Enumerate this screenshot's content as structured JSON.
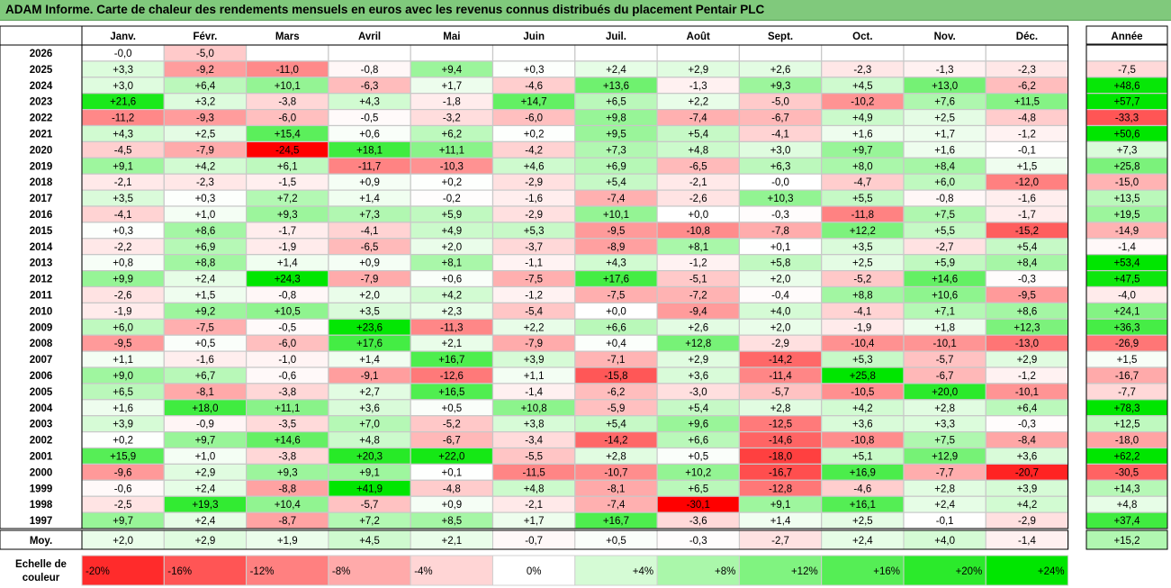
{
  "title": "ADAM Informe. Carte de chaleur des rendements mensuels en euros avec les revenus connus distribués du placement Pentair PLC",
  "chart_data": {
    "type": "heatmap",
    "months": [
      "Janv.",
      "Févr.",
      "Mars",
      "Avril",
      "Mai",
      "Juin",
      "Juil.",
      "Août",
      "Sept.",
      "Oct.",
      "Nov.",
      "Déc."
    ],
    "year_column_label": "Année",
    "rows": [
      {
        "year": "2026",
        "values": [
          "-0,0",
          "-5,0",
          null,
          null,
          null,
          null,
          null,
          null,
          null,
          null,
          null,
          null
        ],
        "annual": null
      },
      {
        "year": "2025",
        "values": [
          "+3,3",
          "-9,2",
          "-11,0",
          "-0,8",
          "+9,4",
          "+0,3",
          "+2,4",
          "+2,9",
          "+2,6",
          "-2,3",
          "-1,3",
          "-2,3"
        ],
        "annual": "-7,5"
      },
      {
        "year": "2024",
        "values": [
          "+3,0",
          "+6,4",
          "+10,1",
          "-6,3",
          "+1,7",
          "-4,6",
          "+13,6",
          "-1,3",
          "+9,3",
          "+4,5",
          "+13,0",
          "-6,2"
        ],
        "annual": "+48,6"
      },
      {
        "year": "2023",
        "values": [
          "+21,6",
          "+3,2",
          "-3,8",
          "+4,3",
          "-1,8",
          "+14,7",
          "+6,5",
          "+2,2",
          "-5,0",
          "-10,2",
          "+7,6",
          "+11,5"
        ],
        "annual": "+57,7"
      },
      {
        "year": "2022",
        "values": [
          "-11,2",
          "-9,3",
          "-6,0",
          "-0,5",
          "-3,2",
          "-6,0",
          "+9,8",
          "-7,4",
          "-6,7",
          "+4,9",
          "+2,5",
          "-4,8"
        ],
        "annual": "-33,3"
      },
      {
        "year": "2021",
        "values": [
          "+4,3",
          "+2,5",
          "+15,4",
          "+0,6",
          "+6,2",
          "+0,2",
          "+9,5",
          "+5,4",
          "-4,1",
          "+1,6",
          "+1,7",
          "-1,2"
        ],
        "annual": "+50,6"
      },
      {
        "year": "2020",
        "values": [
          "-4,5",
          "-7,9",
          "-24,5",
          "+18,1",
          "+11,1",
          "-4,2",
          "+7,3",
          "+4,8",
          "+3,0",
          "+9,7",
          "+1,6",
          "-0,1"
        ],
        "annual": "+7,3"
      },
      {
        "year": "2019",
        "values": [
          "+9,1",
          "+4,2",
          "+6,1",
          "-11,7",
          "-10,3",
          "+4,6",
          "+6,9",
          "-6,5",
          "+6,3",
          "+8,0",
          "+8,4",
          "+1,5"
        ],
        "annual": "+25,8"
      },
      {
        "year": "2018",
        "values": [
          "-2,1",
          "-2,3",
          "-1,5",
          "+0,9",
          "+0,2",
          "-2,9",
          "+5,4",
          "-2,1",
          "-0,0",
          "-4,7",
          "+6,0",
          "-12,0"
        ],
        "annual": "-15,0"
      },
      {
        "year": "2017",
        "values": [
          "+3,5",
          "+0,3",
          "+7,2",
          "+1,4",
          "-0,2",
          "-1,6",
          "-7,4",
          "-2,6",
          "+10,3",
          "+5,5",
          "-0,8",
          "-1,6"
        ],
        "annual": "+13,5"
      },
      {
        "year": "2016",
        "values": [
          "-4,1",
          "+1,0",
          "+9,3",
          "+7,3",
          "+5,9",
          "-2,9",
          "+10,1",
          "+0,0",
          "-0,3",
          "-11,8",
          "+7,5",
          "-1,7"
        ],
        "annual": "+19,5"
      },
      {
        "year": "2015",
        "values": [
          "+0,3",
          "+8,6",
          "-1,7",
          "-4,1",
          "+4,9",
          "+5,3",
          "-9,5",
          "-10,8",
          "-7,8",
          "+12,2",
          "+5,5",
          "-15,2"
        ],
        "annual": "-14,9"
      },
      {
        "year": "2014",
        "values": [
          "-2,2",
          "+6,9",
          "-1,9",
          "-6,5",
          "+2,0",
          "-3,7",
          "-8,9",
          "+8,1",
          "+0,1",
          "+3,5",
          "-2,7",
          "+5,4"
        ],
        "annual": "-1,4"
      },
      {
        "year": "2013",
        "values": [
          "+0,8",
          "+8,8",
          "+1,4",
          "+0,9",
          "+8,1",
          "-1,1",
          "+4,3",
          "-1,2",
          "+5,8",
          "+2,5",
          "+5,9",
          "+8,4"
        ],
        "annual": "+53,4"
      },
      {
        "year": "2012",
        "values": [
          "+9,9",
          "+2,4",
          "+24,3",
          "-7,9",
          "+0,6",
          "-7,5",
          "+17,6",
          "-5,1",
          "+2,0",
          "-5,2",
          "+14,6",
          "-0,3"
        ],
        "annual": "+47,5"
      },
      {
        "year": "2011",
        "values": [
          "-2,6",
          "+1,5",
          "-0,8",
          "+2,0",
          "+4,2",
          "-1,2",
          "-7,5",
          "-7,2",
          "-0,4",
          "+8,8",
          "+10,6",
          "-9,5"
        ],
        "annual": "-4,0"
      },
      {
        "year": "2010",
        "values": [
          "-1,9",
          "+9,2",
          "+10,5",
          "+3,5",
          "+2,3",
          "-5,4",
          "+0,0",
          "-9,4",
          "+4,0",
          "-4,1",
          "+7,1",
          "+8,6"
        ],
        "annual": "+24,1"
      },
      {
        "year": "2009",
        "values": [
          "+6,0",
          "-7,5",
          "-0,5",
          "+23,6",
          "-11,3",
          "+2,2",
          "+6,6",
          "+2,6",
          "+2,0",
          "-1,9",
          "+1,8",
          "+12,3"
        ],
        "annual": "+36,3"
      },
      {
        "year": "2008",
        "values": [
          "-9,5",
          "+0,5",
          "-6,0",
          "+17,6",
          "+2,1",
          "-7,9",
          "+0,4",
          "+12,8",
          "-2,9",
          "-10,4",
          "-10,1",
          "-13,0"
        ],
        "annual": "-26,9"
      },
      {
        "year": "2007",
        "values": [
          "+1,1",
          "-1,6",
          "-1,0",
          "+1,4",
          "+16,7",
          "+3,9",
          "-7,1",
          "+2,9",
          "-14,2",
          "+5,3",
          "-5,7",
          "+2,9"
        ],
        "annual": "+1,5"
      },
      {
        "year": "2006",
        "values": [
          "+9,0",
          "+6,7",
          "-0,6",
          "-9,1",
          "-12,6",
          "+1,1",
          "-15,8",
          "+3,6",
          "-11,4",
          "+25,8",
          "-6,7",
          "-1,2"
        ],
        "annual": "-16,7"
      },
      {
        "year": "2005",
        "values": [
          "+6,5",
          "-8,1",
          "-3,8",
          "+2,7",
          "+16,5",
          "-1,4",
          "-6,2",
          "-3,0",
          "-5,7",
          "-10,5",
          "+20,0",
          "-10,1"
        ],
        "annual": "-7,7"
      },
      {
        "year": "2004",
        "values": [
          "+1,6",
          "+18,0",
          "+11,1",
          "+3,6",
          "+0,5",
          "+10,8",
          "-5,9",
          "+5,4",
          "+2,8",
          "+4,2",
          "+2,8",
          "+6,4"
        ],
        "annual": "+78,3"
      },
      {
        "year": "2003",
        "values": [
          "+3,9",
          "-0,9",
          "-3,5",
          "+7,0",
          "-5,2",
          "+3,8",
          "+5,4",
          "+9,6",
          "-12,5",
          "+3,6",
          "+3,3",
          "-0,3"
        ],
        "annual": "+12,5"
      },
      {
        "year": "2002",
        "values": [
          "+0,2",
          "+9,7",
          "+14,6",
          "+4,8",
          "-6,7",
          "-3,4",
          "-14,2",
          "+6,6",
          "-14,6",
          "-10,8",
          "+7,5",
          "-8,4"
        ],
        "annual": "-18,0"
      },
      {
        "year": "2001",
        "values": [
          "+15,9",
          "+1,0",
          "-3,8",
          "+20,3",
          "+22,0",
          "-5,5",
          "+2,8",
          "+0,5",
          "-18,0",
          "+5,1",
          "+12,9",
          "+3,6"
        ],
        "annual": "+62,2"
      },
      {
        "year": "2000",
        "values": [
          "-9,6",
          "+2,9",
          "+9,3",
          "+9,1",
          "+0,1",
          "-11,5",
          "-10,7",
          "+10,2",
          "-16,7",
          "+16,9",
          "-7,7",
          "-20,7"
        ],
        "annual": "-30,5"
      },
      {
        "year": "1999",
        "values": [
          "-0,6",
          "+2,4",
          "-8,8",
          "+41,9",
          "-4,8",
          "+4,8",
          "-8,1",
          "+6,5",
          "-12,8",
          "-4,6",
          "+2,8",
          "+3,9"
        ],
        "annual": "+14,3"
      },
      {
        "year": "1998",
        "values": [
          "-2,5",
          "+19,3",
          "+10,4",
          "-5,7",
          "+0,9",
          "-2,1",
          "-7,4",
          "-30,1",
          "+9,1",
          "+16,1",
          "+2,4",
          "+4,2"
        ],
        "annual": "+4,8"
      },
      {
        "year": "1997",
        "values": [
          "+9,7",
          "+2,4",
          "-8,7",
          "+7,2",
          "+8,5",
          "+1,7",
          "+16,7",
          "-3,6",
          "+1,4",
          "+2,5",
          "-0,1",
          "-2,9"
        ],
        "annual": "+37,4"
      }
    ],
    "average": {
      "label": "Moy.",
      "values": [
        "+2,0",
        "+2,9",
        "+1,9",
        "+4,5",
        "+2,1",
        "-0,7",
        "+0,5",
        "-0,3",
        "-2,7",
        "+2,4",
        "+4,0",
        "-1,4"
      ],
      "annual": "+15,2"
    },
    "color_scale": {
      "label": "Echelle de couleur",
      "stops": [
        "-20%",
        "-16%",
        "-12%",
        "-8%",
        "-4%",
        "0%",
        "+4%",
        "+8%",
        "+12%",
        "+16%",
        "+20%",
        "+24%"
      ],
      "stop_values": [
        -20,
        -16,
        -12,
        -8,
        -4,
        0,
        4,
        8,
        12,
        16,
        20,
        24
      ],
      "negative_color": "#ff0000",
      "positive_color": "#00e600",
      "neutral_color": "#ffffff"
    }
  }
}
